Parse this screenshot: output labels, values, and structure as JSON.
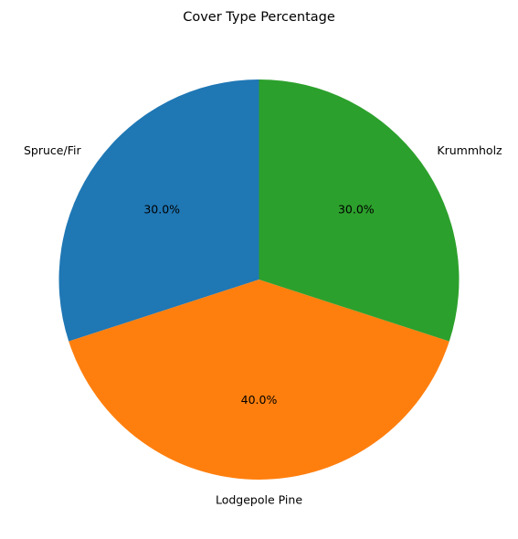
{
  "chart_data": {
    "type": "pie",
    "title": "Cover Type Percentage",
    "categories": [
      "Spruce/Fir",
      "Lodgepole Pine",
      "Krummholz"
    ],
    "values": [
      30.0,
      40.0,
      30.0
    ],
    "percent_labels": [
      "30.0%",
      "40.0%",
      "30.0%"
    ],
    "colors": [
      "#1f77b4",
      "#ff7f0e",
      "#2ca02c"
    ],
    "start_angle_deg": 90,
    "direction": "counterclockwise",
    "legend": "none"
  }
}
